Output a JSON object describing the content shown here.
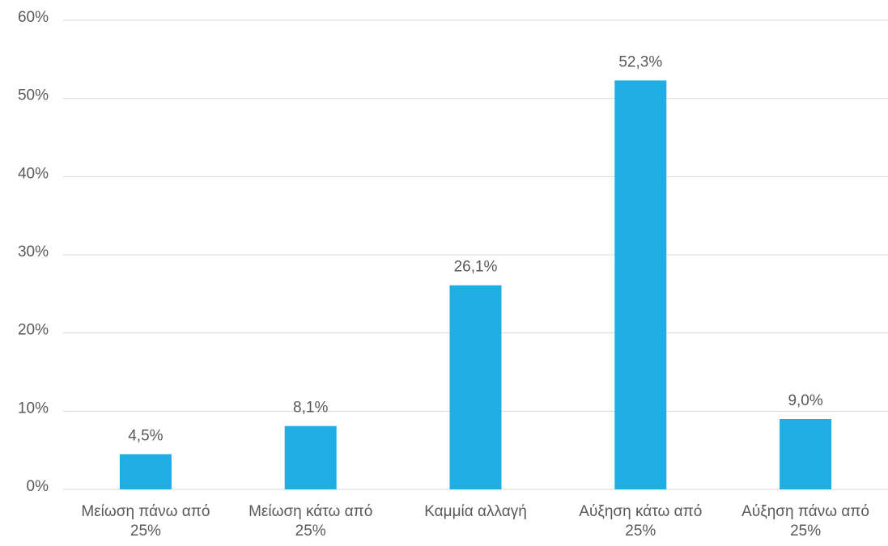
{
  "chart_data": {
    "type": "bar",
    "categories": [
      "Μείωση πάνω από\n25%",
      "Μείωση κάτω από\n25%",
      "Καμμία αλλαγή",
      "Αύξηση κάτω από\n25%",
      "Αύξηση πάνω από\n25%"
    ],
    "values": [
      4.5,
      8.1,
      26.1,
      52.3,
      9.0
    ],
    "value_labels": [
      "4,5%",
      "8,1%",
      "26,1%",
      "52,3%",
      "9,0%"
    ],
    "color": "#1fade4",
    "ylim": [
      0,
      60
    ],
    "yticks": [
      {
        "value": 0,
        "label": "0%"
      },
      {
        "value": 10,
        "label": "10%"
      },
      {
        "value": 20,
        "label": "20%"
      },
      {
        "value": 30,
        "label": "30%"
      },
      {
        "value": 40,
        "label": "40%"
      },
      {
        "value": 50,
        "label": "50%"
      },
      {
        "value": 60,
        "label": "60%"
      }
    ],
    "grid": true
  }
}
